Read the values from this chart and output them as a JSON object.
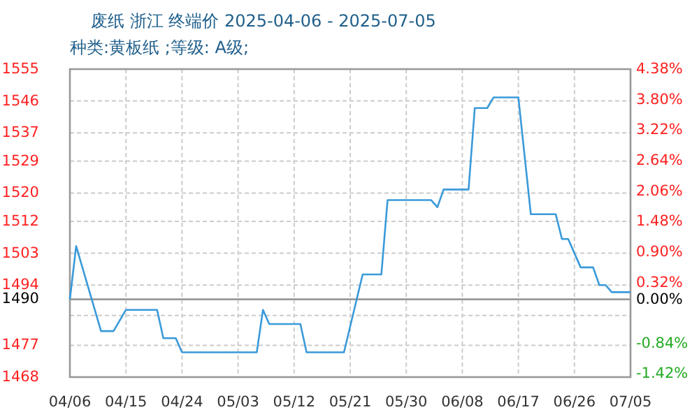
{
  "chart_data": {
    "type": "line",
    "title": "废纸 浙江 终端价 2025-04-06 - 2025-07-05",
    "subtitle": "种类:黄板纸 ;等级: A级;",
    "series": [
      {
        "color": "#3a9ad9",
        "x": [
          "--04-06",
          "--04-07",
          "--04-11",
          "--04-13",
          "--04-15",
          "--04-20",
          "--04-21",
          "--04-23",
          "--04-24",
          "--05-06",
          "--05-07",
          "--05-08",
          "--05-13",
          "--05-14",
          "--05-20",
          "--05-23",
          "--05-26",
          "--05-27",
          "--06-03",
          "--06-04",
          "--06-05",
          "--06-09",
          "--06-10",
          "--06-12",
          "--06-13",
          "--06-17",
          "--06-19",
          "--06-23",
          "--06-24",
          "--06-25",
          "--06-27",
          "--06-29",
          "--06-30",
          "--07-01",
          "--07-02",
          "--07-05"
        ],
        "values": [
          1490,
          1505,
          1481,
          1481,
          1487,
          1487,
          1479,
          1479,
          1475,
          1475,
          1487,
          1483,
          1483,
          1475,
          1475,
          1497,
          1497,
          1518,
          1518,
          1516,
          1521,
          1521,
          1544,
          1544,
          1547,
          1547,
          1514,
          1514,
          1507,
          1507,
          1499,
          1499,
          1494,
          1494,
          1492,
          1492
        ]
      }
    ],
    "xlim": [
      "--04-06",
      "--07-05"
    ],
    "xticks": [
      {
        "value": "--04-06",
        "label": "04/06"
      },
      {
        "value": "--04-15",
        "label": "04/15"
      },
      {
        "value": "--04-24",
        "label": "04/24"
      },
      {
        "value": "--05-03",
        "label": "05/03"
      },
      {
        "value": "--05-12",
        "label": "05/12"
      },
      {
        "value": "--05-21",
        "label": "05/21"
      },
      {
        "value": "--05-30",
        "label": "05/30"
      },
      {
        "value": "--06-08",
        "label": "06/08"
      },
      {
        "value": "--06-17",
        "label": "06/17"
      },
      {
        "value": "--06-26",
        "label": "06/26"
      },
      {
        "value": "--07-05",
        "label": "07/05"
      }
    ],
    "ylim": [
      1468,
      1555
    ],
    "yticks": [
      1468,
      1477,
      {
        "value": 1485.4,
        "label": null
      },
      1490,
      1494,
      1503,
      1512,
      1520,
      1529,
      1537,
      1546,
      1555
    ],
    "y2lim": [
      -1.48,
      4.38
    ],
    "y2ticks": [
      {
        "value": -1.42,
        "label": "-1.42%"
      },
      {
        "value": -0.84,
        "label": "-0.84%"
      },
      {
        "value": -0.26,
        "label": null
      },
      {
        "value": 0.32,
        "label": "0.32%"
      },
      {
        "value": 0.9,
        "label": "0.90%"
      },
      {
        "value": 1.48,
        "label": "1.48%"
      },
      {
        "value": 2.06,
        "label": "2.06%"
      },
      {
        "value": 2.64,
        "label": "2.64%"
      },
      {
        "value": 3.22,
        "label": "3.22%"
      },
      {
        "value": 3.8,
        "label": "3.80%"
      },
      {
        "value": 4.38,
        "label": "4.38%"
      }
    ],
    "ref_lines": [
      {
        "axis": "y2",
        "value": 0,
        "color": "#999999",
        "label": "0.00%"
      }
    ],
    "grid": true,
    "marker": "none",
    "line_style": "solid"
  }
}
